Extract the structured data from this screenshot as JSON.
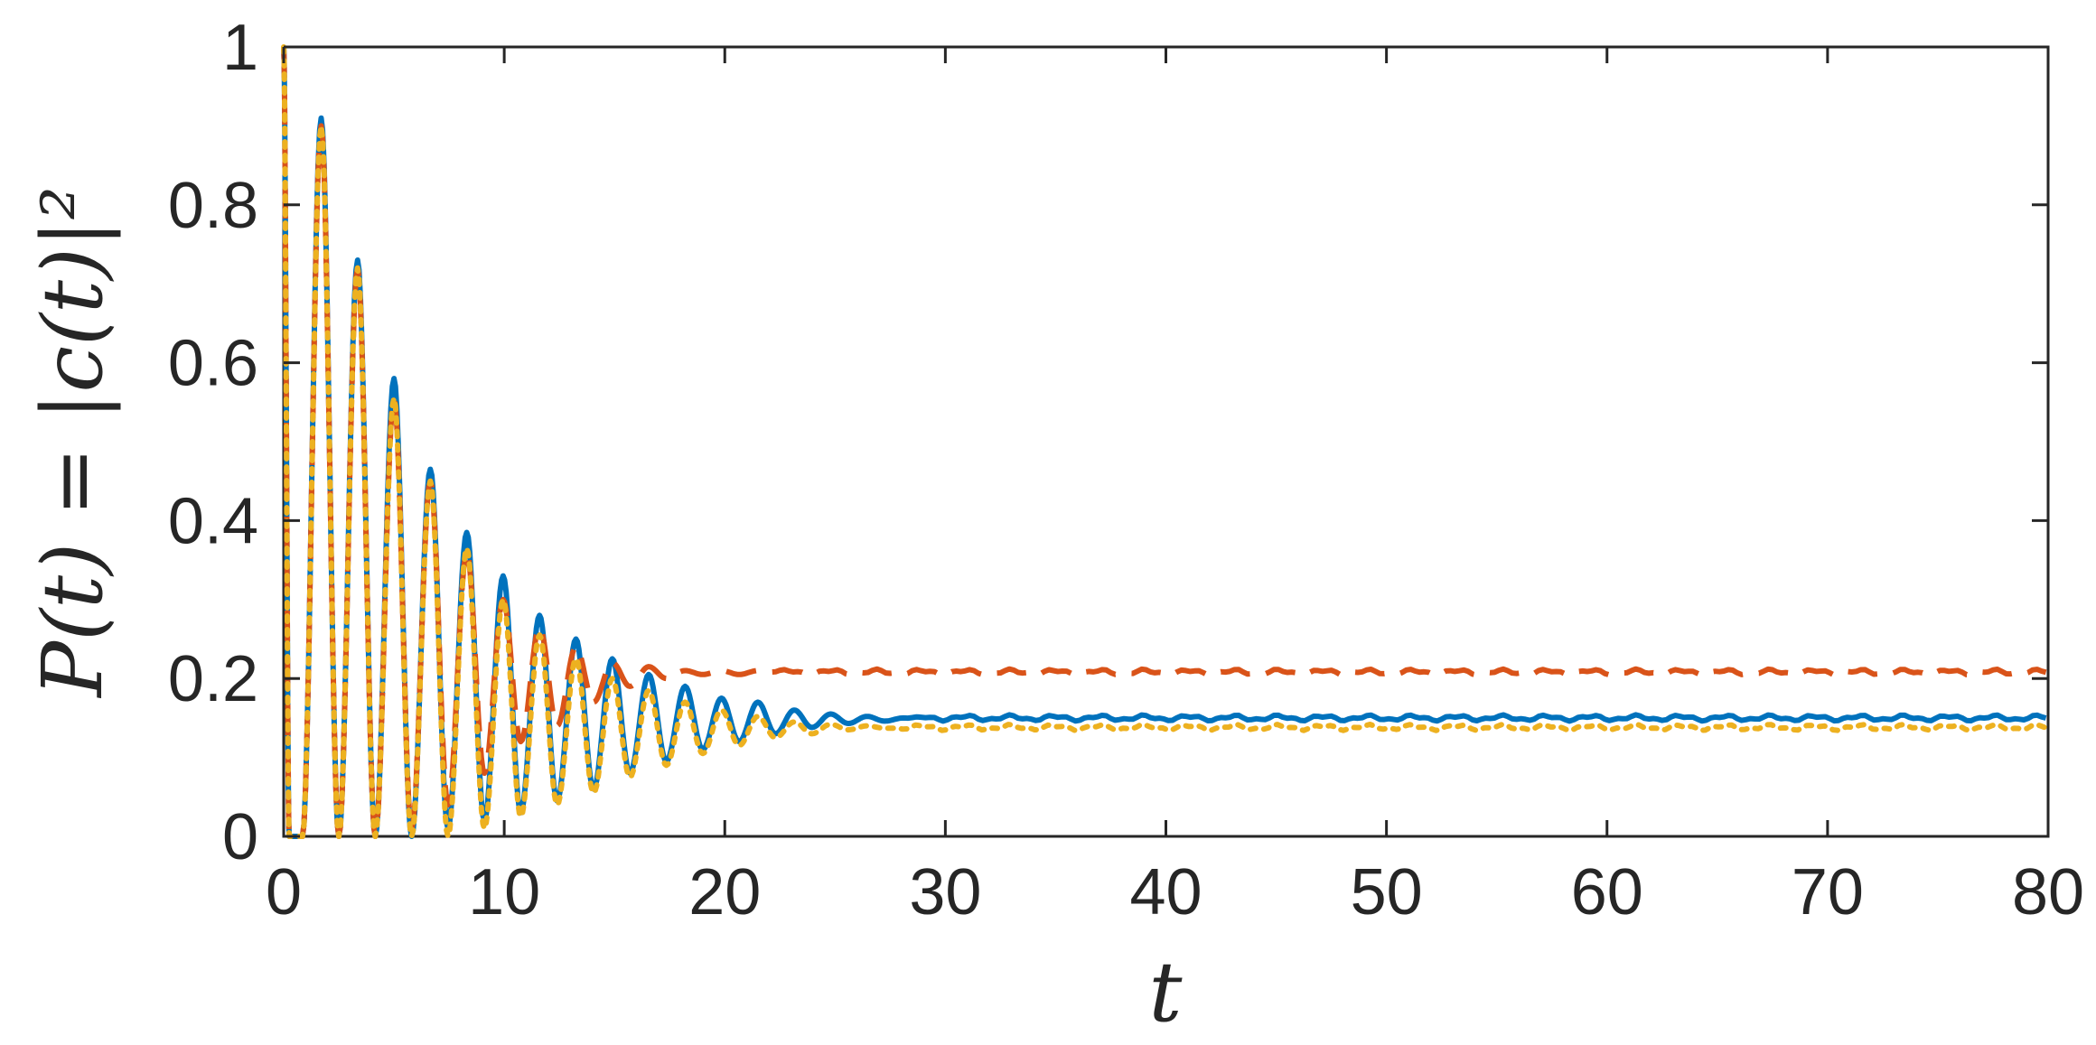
{
  "chart_data": {
    "type": "line",
    "xlabel": "t",
    "ylabel": "P(t) = |c(t)|²",
    "xlim": [
      0,
      80
    ],
    "ylim": [
      0,
      1
    ],
    "xticks": [
      "0",
      "10",
      "20",
      "30",
      "40",
      "50",
      "60",
      "70",
      "80"
    ],
    "yticks": [
      "0",
      "0.2",
      "0.4",
      "0.6",
      "0.8",
      "1"
    ],
    "grid": false,
    "legend": false,
    "series": [
      {
        "color": "#0072BD",
        "line_style": "solid",
        "peaks": [
          [
            0,
            1.0
          ],
          [
            1.7,
            0.91
          ],
          [
            3.35,
            0.73
          ],
          [
            5.0,
            0.58
          ],
          [
            6.65,
            0.465
          ],
          [
            8.3,
            0.385
          ],
          [
            9.95,
            0.33
          ],
          [
            11.6,
            0.28
          ],
          [
            13.25,
            0.25
          ],
          [
            14.9,
            0.225
          ],
          [
            16.55,
            0.205
          ],
          [
            18.2,
            0.19
          ],
          [
            19.85,
            0.175
          ],
          [
            21.5,
            0.17
          ],
          [
            23.15,
            0.16
          ],
          [
            24.8,
            0.155
          ],
          [
            26.45,
            0.152
          ],
          [
            28.1,
            0.15
          ]
        ],
        "troughs": [
          [
            0.25,
            0.0
          ],
          [
            0.85,
            0.0
          ],
          [
            2.5,
            0.0
          ],
          [
            4.15,
            0.0
          ],
          [
            5.8,
            0.0
          ],
          [
            7.45,
            0.01
          ],
          [
            9.1,
            0.02
          ],
          [
            10.75,
            0.03
          ],
          [
            12.4,
            0.045
          ],
          [
            14.05,
            0.06
          ],
          [
            15.7,
            0.08
          ],
          [
            17.35,
            0.095
          ],
          [
            19.0,
            0.11
          ],
          [
            20.65,
            0.12
          ],
          [
            22.3,
            0.13
          ],
          [
            23.95,
            0.138
          ],
          [
            25.6,
            0.143
          ],
          [
            27.25,
            0.146
          ]
        ],
        "steady_state": 0.15
      },
      {
        "color": "#D95319",
        "line_style": "dashed",
        "peaks": [
          [
            0,
            1.0
          ],
          [
            1.7,
            0.9
          ],
          [
            3.35,
            0.72
          ],
          [
            5.0,
            0.555
          ],
          [
            6.65,
            0.45
          ],
          [
            8.3,
            0.36
          ],
          [
            9.95,
            0.3
          ],
          [
            11.6,
            0.265
          ],
          [
            13.25,
            0.24
          ],
          [
            14.9,
            0.22
          ],
          [
            16.55,
            0.215
          ],
          [
            18.2,
            0.21
          ],
          [
            19.85,
            0.21
          ],
          [
            21.5,
            0.21
          ]
        ],
        "troughs": [
          [
            0.25,
            0.0
          ],
          [
            0.85,
            0.0
          ],
          [
            2.5,
            0.0
          ],
          [
            4.15,
            0.0
          ],
          [
            5.8,
            0.01
          ],
          [
            7.45,
            0.04
          ],
          [
            9.1,
            0.08
          ],
          [
            10.75,
            0.12
          ],
          [
            12.4,
            0.14
          ],
          [
            14.05,
            0.17
          ],
          [
            15.7,
            0.19
          ],
          [
            17.35,
            0.2
          ],
          [
            19.0,
            0.205
          ],
          [
            20.65,
            0.205
          ]
        ],
        "steady_state": 0.208
      },
      {
        "color": "#EDB120",
        "line_style": "dotted",
        "peaks": [
          [
            0,
            1.0
          ],
          [
            1.7,
            0.9
          ],
          [
            3.35,
            0.72
          ],
          [
            5.0,
            0.555
          ],
          [
            6.65,
            0.45
          ],
          [
            8.3,
            0.365
          ],
          [
            9.95,
            0.3
          ],
          [
            11.6,
            0.255
          ],
          [
            13.25,
            0.225
          ],
          [
            14.9,
            0.2
          ],
          [
            16.55,
            0.185
          ],
          [
            18.2,
            0.17
          ],
          [
            19.85,
            0.16
          ],
          [
            21.5,
            0.152
          ],
          [
            23.15,
            0.145
          ],
          [
            24.8,
            0.142
          ],
          [
            26.45,
            0.14
          ]
        ],
        "troughs": [
          [
            0.25,
            0.0
          ],
          [
            0.85,
            0.0
          ],
          [
            2.5,
            0.0
          ],
          [
            4.15,
            0.0
          ],
          [
            5.8,
            0.0
          ],
          [
            7.45,
            0.0
          ],
          [
            9.1,
            0.01
          ],
          [
            10.75,
            0.025
          ],
          [
            12.4,
            0.04
          ],
          [
            14.05,
            0.055
          ],
          [
            15.7,
            0.075
          ],
          [
            17.35,
            0.09
          ],
          [
            19.0,
            0.105
          ],
          [
            20.65,
            0.115
          ],
          [
            22.3,
            0.125
          ],
          [
            23.95,
            0.13
          ],
          [
            25.6,
            0.135
          ],
          [
            27.25,
            0.137
          ]
        ],
        "steady_state": 0.138
      }
    ]
  }
}
